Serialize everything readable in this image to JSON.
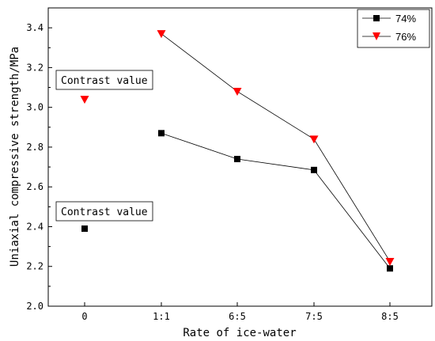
{
  "chart_data": {
    "type": "scatter",
    "xlabel": "Rate of ice-water",
    "ylabel": "Uniaxial compressive strength/MPa",
    "categories": [
      "0",
      "1:1",
      "6:5",
      "7:5",
      "8:5"
    ],
    "ylim": [
      2.0,
      3.5
    ],
    "yticks": [
      "2.0",
      "2.2",
      "2.4",
      "2.6",
      "2.8",
      "3.0",
      "3.2",
      "3.4"
    ],
    "grid": false,
    "legend_position": "top-right",
    "series": [
      {
        "name": "74%",
        "marker": "square",
        "color": "#000000",
        "contrast_value": 2.39,
        "values": [
          2.87,
          2.74,
          2.685,
          2.19
        ],
        "value_categories": [
          "1:1",
          "6:5",
          "7:5",
          "8:5"
        ]
      },
      {
        "name": "76%",
        "marker": "triangle-down",
        "color": "#ff0000",
        "contrast_value": 3.04,
        "values": [
          3.37,
          3.08,
          2.84,
          2.225
        ],
        "value_categories": [
          "1:1",
          "6:5",
          "7:5",
          "8:5"
        ]
      }
    ],
    "annotations": [
      {
        "text": "Contrast value",
        "series": "76%"
      },
      {
        "text": "Contrast value",
        "series": "74%"
      }
    ]
  }
}
